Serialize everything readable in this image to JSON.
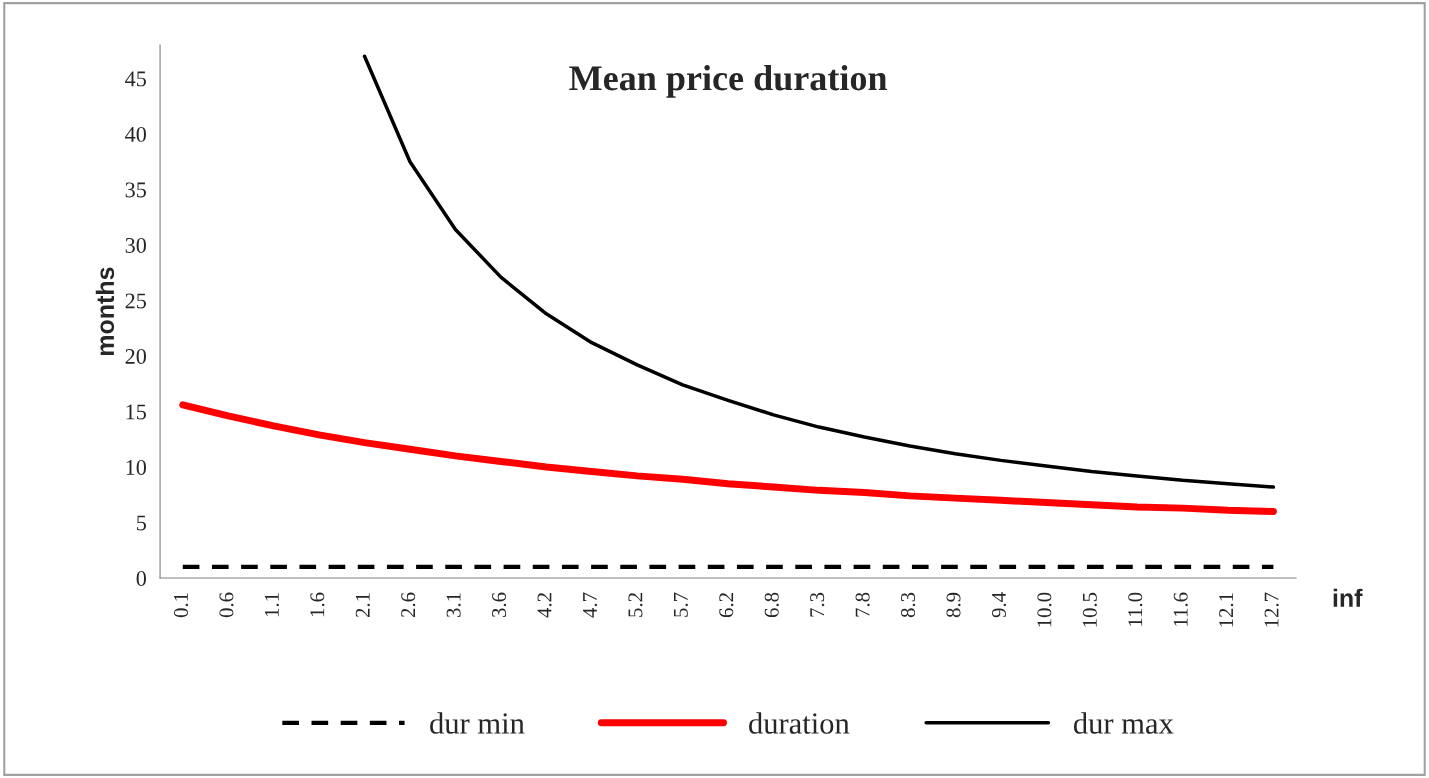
{
  "chart_data": {
    "type": "line",
    "title": "Mean price duration",
    "xlabel": "inf",
    "ylabel": "months",
    "categories": [
      "0.1",
      "0.6",
      "1.1",
      "1.6",
      "2.1",
      "2.6",
      "3.1",
      "3.6",
      "4.2",
      "4.7",
      "5.2",
      "5.7",
      "6.2",
      "6.8",
      "7.3",
      "7.8",
      "8.3",
      "8.9",
      "9.4",
      "10.0",
      "10.5",
      "11.0",
      "11.6",
      "12.1",
      "12.7"
    ],
    "series": [
      {
        "name": "dur min",
        "color": "#000000",
        "line_style": "dashed",
        "values": [
          1,
          1,
          1,
          1,
          1,
          1,
          1,
          1,
          1,
          1,
          1,
          1,
          1,
          1,
          1,
          1,
          1,
          1,
          1,
          1,
          1,
          1,
          1,
          1,
          1
        ]
      },
      {
        "name": "duration",
        "color": "#ff0000",
        "line_style": "solid",
        "values": [
          15.6,
          14.6,
          13.7,
          12.9,
          12.2,
          11.6,
          11.0,
          10.5,
          10.0,
          9.6,
          9.2,
          8.9,
          8.5,
          8.2,
          7.9,
          7.7,
          7.4,
          7.2,
          7.0,
          6.8,
          6.6,
          6.4,
          6.3,
          6.1,
          6.0
        ]
      },
      {
        "name": "dur max",
        "color": "#000000",
        "line_style": "solid",
        "values": [
          null,
          null,
          null,
          null,
          47,
          37.5,
          31.4,
          27.1,
          23.8,
          21.2,
          19.2,
          17.4,
          16.0,
          14.7,
          13.6,
          12.7,
          11.9,
          11.2,
          10.6,
          10.1,
          9.6,
          9.2,
          8.8,
          8.5,
          8.2
        ]
      }
    ],
    "ylim": [
      0,
      48
    ],
    "yticks": [
      0,
      5,
      10,
      15,
      20,
      25,
      30,
      35,
      40,
      45
    ],
    "grid": false,
    "legend": "bottom"
  }
}
